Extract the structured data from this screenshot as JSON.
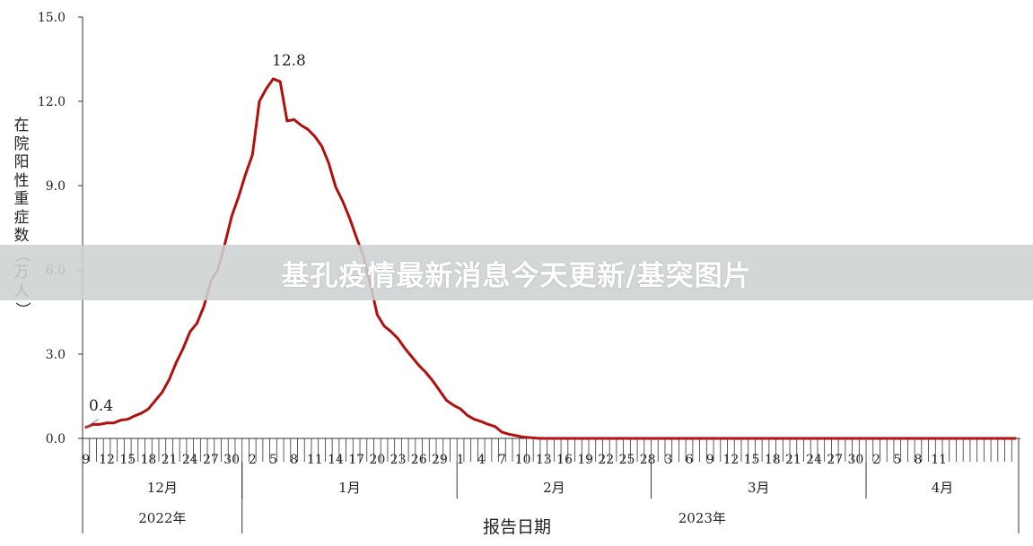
{
  "banner": {
    "text": "基孔疫情最新消息今天更新/基突图片"
  },
  "chart_data": {
    "type": "line",
    "title": "",
    "ylabel": "在院阳性重症数（万人）",
    "xlabel": "报告日期",
    "ylim": [
      0,
      15
    ],
    "yticks": [
      "0.0",
      "3.0",
      "6.0",
      "9.0",
      "12.0",
      "15.0"
    ],
    "annotations": [
      {
        "text": "0.4",
        "day": 0,
        "value": 0.4
      },
      {
        "text": "12.8",
        "day": 27,
        "value": 12.8
      }
    ],
    "series": [
      {
        "color": "#b40f0f",
        "start_date": "2022-12-09",
        "values": [
          0.4,
          0.5,
          0.5,
          0.55,
          0.55,
          0.65,
          0.68,
          0.8,
          0.9,
          1.05,
          1.35,
          1.65,
          2.1,
          2.7,
          3.2,
          3.8,
          4.1,
          4.7,
          5.6,
          6.0,
          6.9,
          7.9,
          8.6,
          9.4,
          10.1,
          12.0,
          12.45,
          12.8,
          12.7,
          11.3,
          11.35,
          11.15,
          11.0,
          10.75,
          10.4,
          9.8,
          8.95,
          8.45,
          7.85,
          7.15,
          6.5,
          5.5,
          4.4,
          4.0,
          3.8,
          3.55,
          3.2,
          2.9,
          2.6,
          2.35,
          2.05,
          1.7,
          1.35,
          1.18,
          1.05,
          0.82,
          0.68,
          0.6,
          0.5,
          0.42,
          0.22,
          0.15,
          0.1,
          0.05,
          0.03,
          0.01,
          0,
          0,
          0,
          0,
          0,
          0,
          0,
          0,
          0,
          0,
          0,
          0,
          0,
          0,
          0,
          0,
          0,
          0,
          0,
          0,
          0,
          0,
          0,
          0,
          0,
          0,
          0,
          0,
          0,
          0,
          0,
          0,
          0,
          0,
          0,
          0,
          0,
          0,
          0,
          0,
          0,
          0,
          0,
          0,
          0,
          0,
          0,
          0,
          0,
          0,
          0,
          0,
          0,
          0,
          0,
          0,
          0,
          0,
          0,
          0,
          0,
          0,
          0,
          0,
          0,
          0,
          0,
          0,
          0
        ]
      }
    ],
    "x_day_labels": [
      "9",
      "12",
      "15",
      "18",
      "21",
      "24",
      "27",
      "30",
      "2",
      "5",
      "8",
      "11",
      "14",
      "17",
      "20",
      "23",
      "26",
      "29",
      "1",
      "4",
      "7",
      "10",
      "13",
      "16",
      "19",
      "22",
      "25",
      "28",
      "3",
      "6",
      "9",
      "12",
      "15",
      "18",
      "21",
      "24",
      "27",
      "30",
      "2",
      "5",
      "8",
      "11"
    ],
    "months": [
      "12月",
      "1月",
      "2月",
      "3月",
      "4月"
    ],
    "years": [
      "2022年",
      "2023年"
    ]
  }
}
